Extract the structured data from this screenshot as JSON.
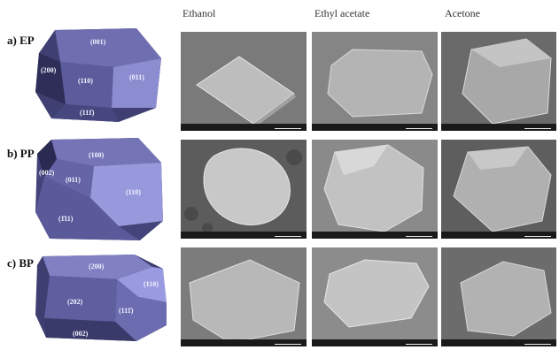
{
  "columns": [
    "Ethanol",
    "Ethyl acetate",
    "Acetone"
  ],
  "rows": [
    {
      "label": "a) EP",
      "faces": [
        "(001)",
        "(200)",
        "(110)",
        "(011)",
        "(111̄)"
      ]
    },
    {
      "label": "b) PP",
      "faces": [
        "(100)",
        "(002)",
        "(011)",
        "(110)",
        "(1̄11)"
      ]
    },
    {
      "label": "c) BP",
      "faces": [
        "(200)",
        "(202)",
        "(110)",
        "(111̄)",
        "(002)"
      ]
    }
  ],
  "colors": {
    "crystal_dark": "#3c3c6e",
    "crystal_mid": "#5b5b96",
    "crystal_light": "#8f8fd2"
  }
}
